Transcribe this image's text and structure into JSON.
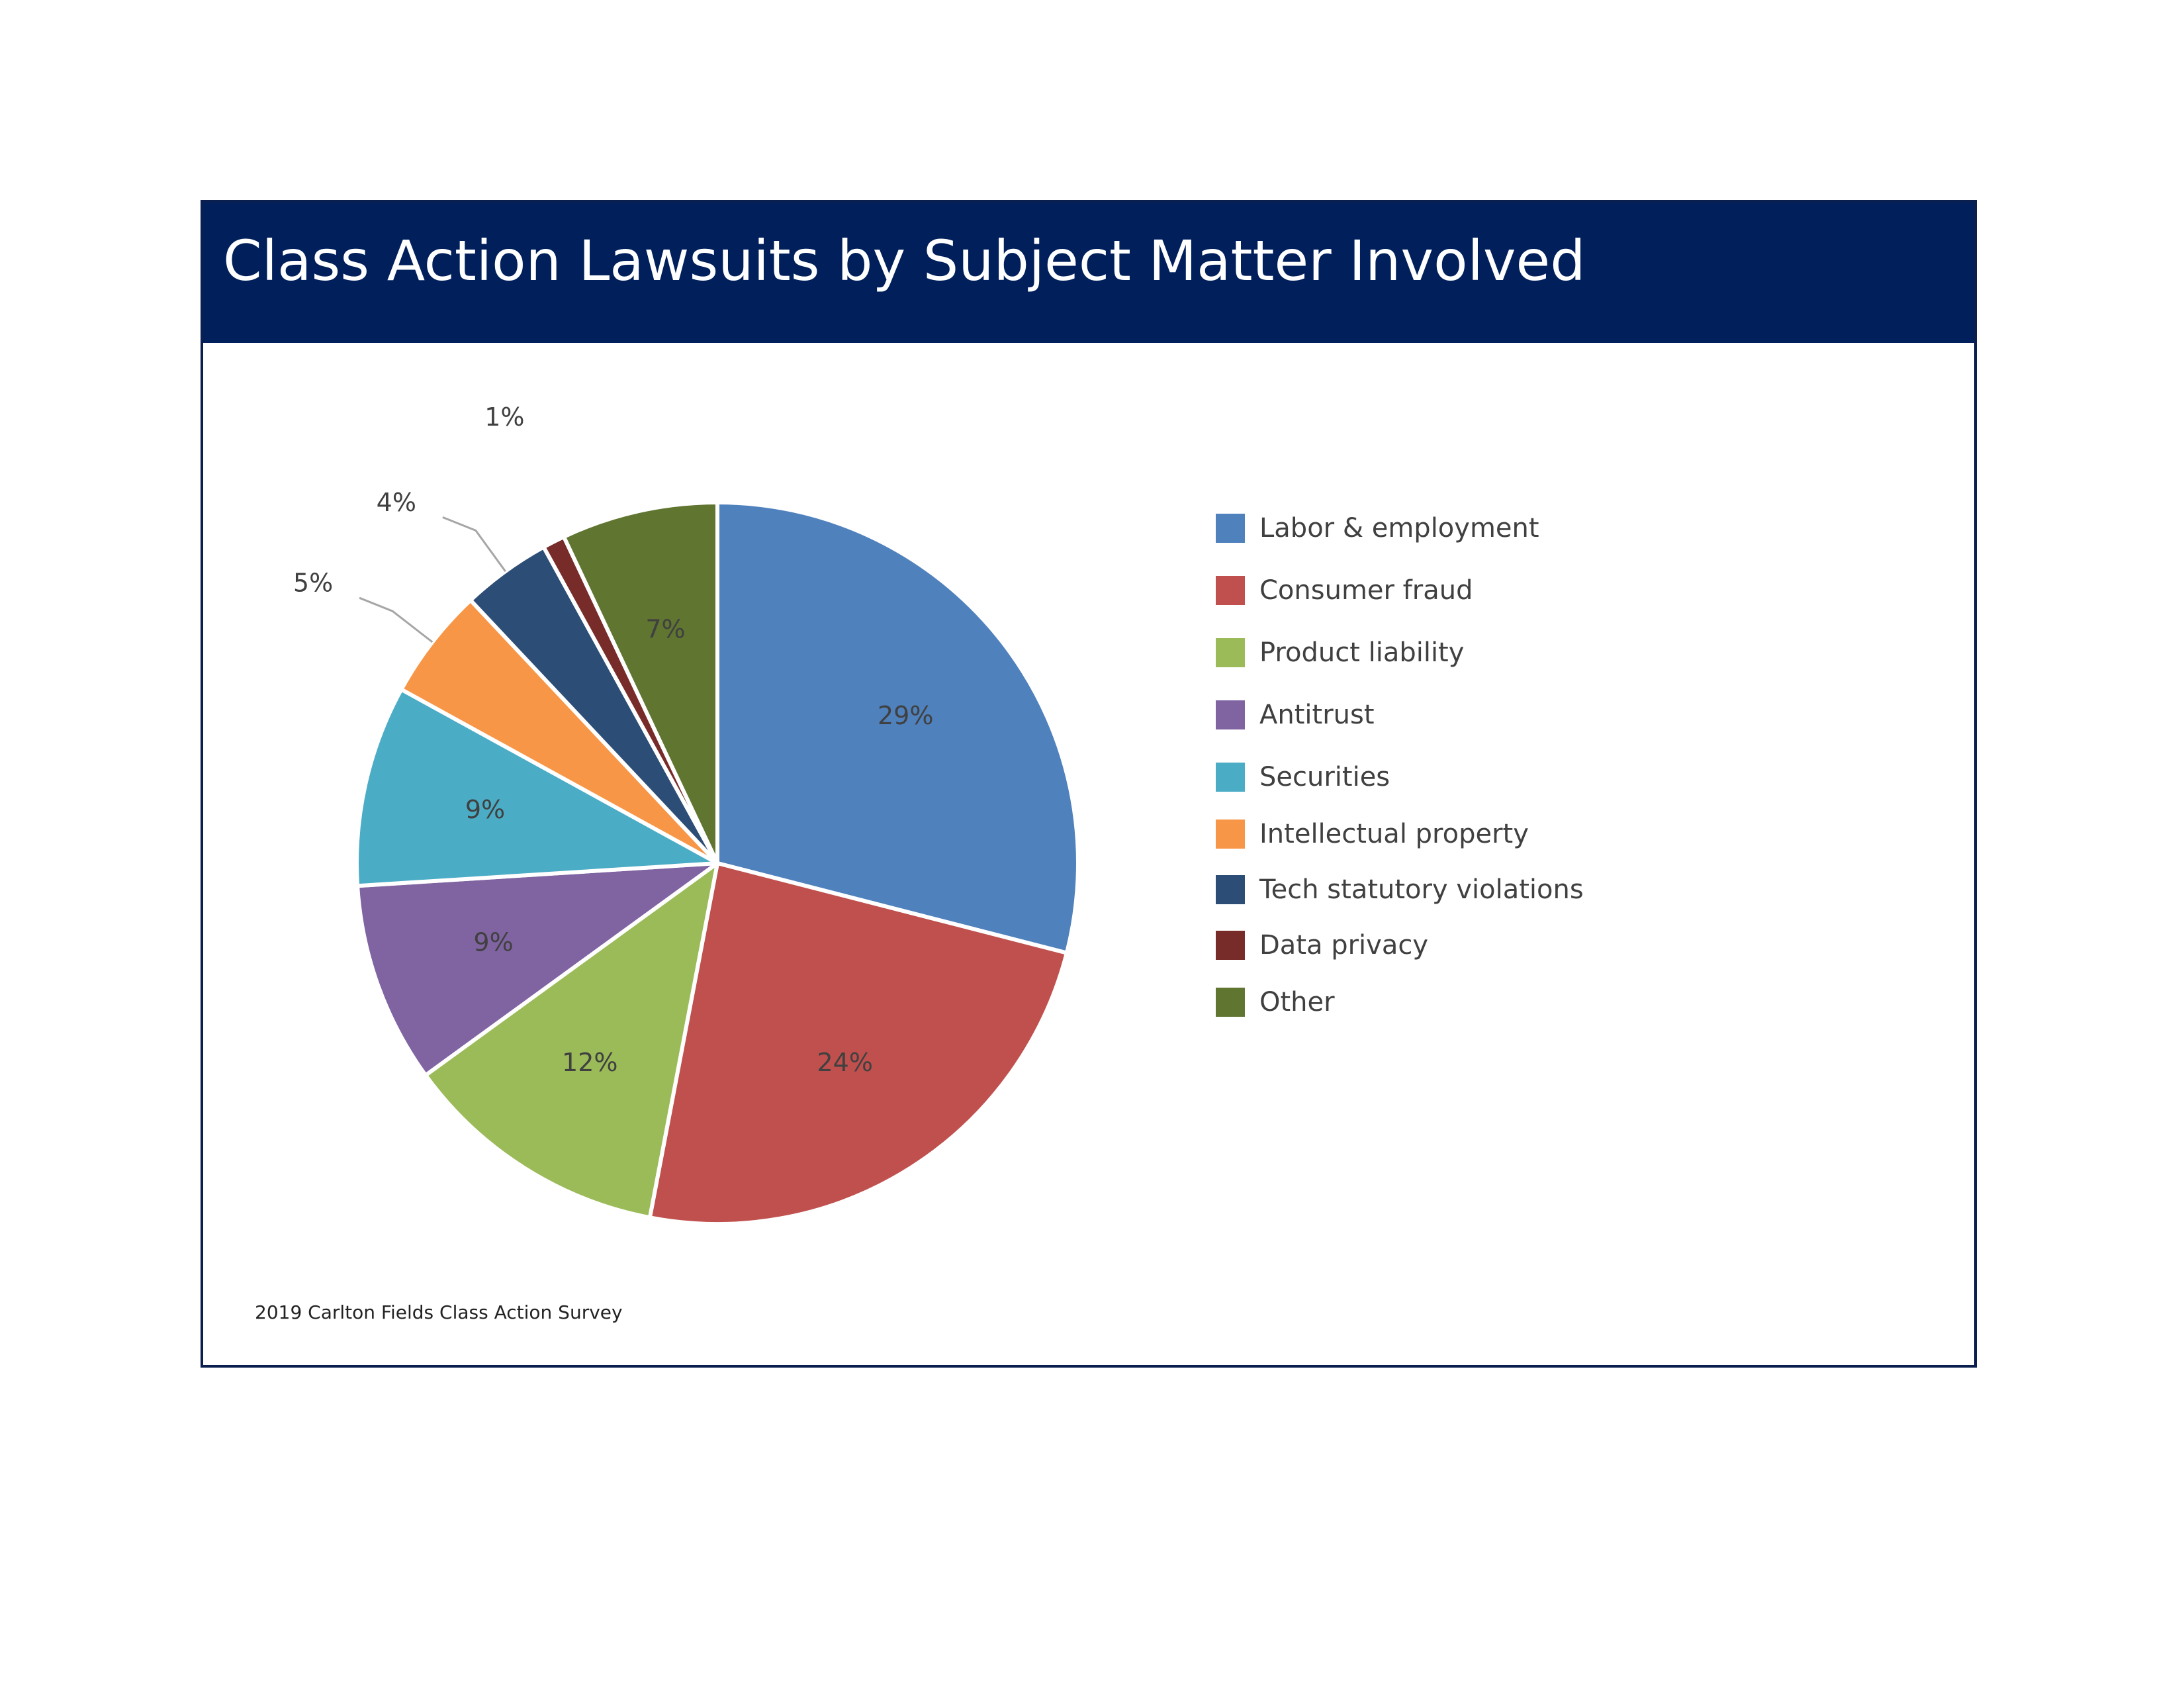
{
  "chart_data": {
    "type": "pie",
    "title": "Class Action Lawsuits by Subject Matter Involved",
    "source": "2019 Carlton Fields Class Action Survey",
    "legend_position": "right",
    "slices": [
      {
        "name": "Labor & employment",
        "value": 29,
        "label": "29%",
        "color": "#4f81bd"
      },
      {
        "name": "Consumer fraud",
        "value": 24,
        "label": "24%",
        "color": "#c0504d"
      },
      {
        "name": "Product liability",
        "value": 12,
        "label": "12%",
        "color": "#9bbb59"
      },
      {
        "name": "Antitrust",
        "value": 9,
        "label": "9%",
        "color": "#8064a2"
      },
      {
        "name": "Securities",
        "value": 9,
        "label": "9%",
        "color": "#4bacc6"
      },
      {
        "name": "Intellectual property",
        "value": 5,
        "label": "5%",
        "color": "#f79646"
      },
      {
        "name": "Tech statutory violations",
        "value": 4,
        "label": "4%",
        "color": "#2c4d75"
      },
      {
        "name": "Data privacy",
        "value": 1,
        "label": "1%",
        "color": "#772c2a"
      },
      {
        "name": "Other",
        "value": 7,
        "label": "7%",
        "color": "#5f7530"
      }
    ]
  }
}
